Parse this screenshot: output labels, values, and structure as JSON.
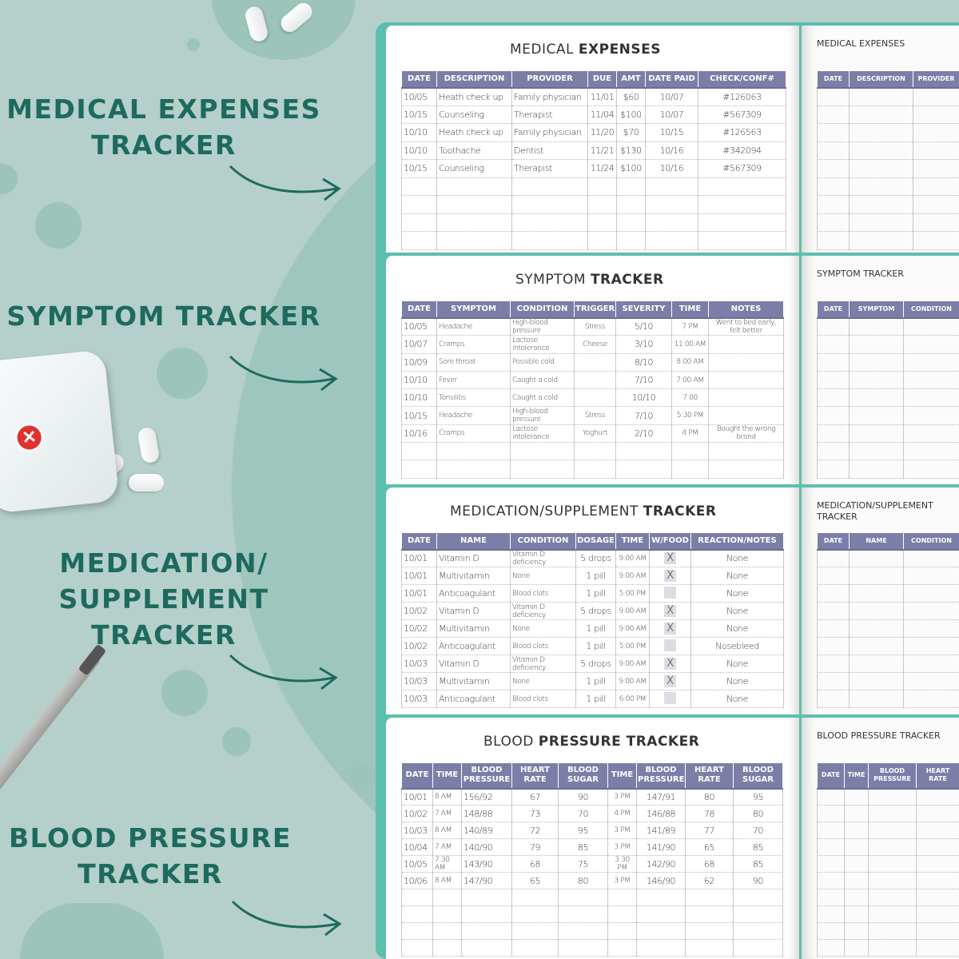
{
  "labels": {
    "medical": "MEDICAL EXPENSES\nTRACKER",
    "symptom": "SYMPTOM TRACKER",
    "medication": "MEDICATION/\nSUPPLEMENT\nTRACKER",
    "bp": "BLOOD PRESSURE\nTRACKER"
  },
  "colors": {
    "background": "#b5cfca",
    "label_text": "#1d6a5e",
    "header_fill": "#7b7fa7",
    "cover": "#5cbfae"
  },
  "icons": [
    "pill-icon",
    "pill-box-icon",
    "red-x-icon",
    "pen-icon",
    "arrow-icon"
  ],
  "pages": [
    {
      "id": "medical",
      "title_light": "MEDICAL ",
      "title_bold": "EXPENSES",
      "right_title": "MEDICAL EXPENSES",
      "right_columns": [
        "DATE",
        "DESCRIPTION",
        "PROVIDER"
      ],
      "columns": [
        "DATE",
        "DESCRIPTION",
        "PROVIDER",
        "DUE",
        "AMT",
        "DATE PAID",
        "CHECK/CONF#"
      ],
      "rows": [
        [
          "10/05",
          "Heath check up",
          "Family physician",
          "11/01",
          "$60",
          "10/07",
          "#126063"
        ],
        [
          "10/15",
          "Counseling",
          "Therapist",
          "11/04",
          "$100",
          "10/07",
          "#567309"
        ],
        [
          "10/10",
          "Heath check up",
          "Family physician",
          "11/20",
          "$70",
          "10/15",
          "#126563"
        ],
        [
          "10/10",
          "Toothache",
          "Dentist",
          "11/21",
          "$130",
          "10/16",
          "#342094"
        ],
        [
          "10/15",
          "Counseling",
          "Therapist",
          "11/24",
          "$100",
          "10/16",
          "#567309"
        ]
      ]
    },
    {
      "id": "symptom",
      "title_light": "SYMPTOM ",
      "title_bold": "TRACKER",
      "right_title": "SYMPTOM TRACKER",
      "right_columns": [
        "DATE",
        "SYMPTOM",
        "CONDITION"
      ],
      "columns": [
        "DATE",
        "SYMPTOM",
        "CONDITION",
        "TRIGGER",
        "SEVERITY",
        "TIME",
        "NOTES"
      ],
      "rows": [
        [
          "10/05",
          "Headache",
          "High-blood pressure",
          "Stress",
          "5/10",
          "7 PM",
          "Went to bed early, felt better"
        ],
        [
          "10/07",
          "Cramps",
          "Lactose intolerance",
          "Cheese",
          "3/10",
          "11:00 AM",
          ""
        ],
        [
          "10/09",
          "Sore throat",
          "Possible cold",
          "",
          "8/10",
          "8:00 AM",
          ""
        ],
        [
          "10/10",
          "Fever",
          "Caught a cold",
          "",
          "7/10",
          "7:00 AM",
          ""
        ],
        [
          "10/10",
          "Tonsilitis",
          "Caught a cold",
          "",
          "10/10",
          "7:00",
          ""
        ],
        [
          "10/15",
          "Headache",
          "High-blood pressure",
          "Stress",
          "7/10",
          "5:30 PM",
          ""
        ],
        [
          "10/16",
          "Cramps",
          "Lactose intolerance",
          "Yoghurt",
          "2/10",
          "4 PM",
          "Bought the wrong brand"
        ]
      ]
    },
    {
      "id": "medication",
      "title_light": "MEDICATION/SUPPLEMENT ",
      "title_bold": "TRACKER",
      "right_title": "MEDICATION/SUPPLEMENT TRACKER",
      "right_columns": [
        "DATE",
        "NAME",
        "CONDITION"
      ],
      "columns": [
        "DATE",
        "NAME",
        "CONDITION",
        "DOSAGE",
        "TIME",
        "W/FOOD",
        "REACTION/NOTES"
      ],
      "rows": [
        [
          "10/01",
          "Vitamin D",
          "Vitamin D deficiency",
          "5 drops",
          "9:00 AM",
          "X",
          "None"
        ],
        [
          "10/01",
          "Multivitamin",
          "None",
          "1 pill",
          "9:00 AM",
          "X",
          "None"
        ],
        [
          "10/01",
          "Anticoagulant",
          "Blood clots",
          "1 pill",
          "5:00 PM",
          "",
          "None"
        ],
        [
          "10/02",
          "Vitamin D",
          "Vitamin D deficiency",
          "5 drops",
          "9:00 AM",
          "X",
          "None"
        ],
        [
          "10/02",
          "Multivitamin",
          "None",
          "1 pill",
          "9:00 AM",
          "X",
          "None"
        ],
        [
          "10/02",
          "Anticoagulant",
          "Blood clots",
          "1 pill",
          "5:00 PM",
          "",
          "Nosebleed"
        ],
        [
          "10/03",
          "Vitamin D",
          "Vitamin D deficiency",
          "5 drops",
          "9:00 AM",
          "X",
          "None"
        ],
        [
          "10/03",
          "Multivitamin",
          "None",
          "1 pill",
          "9:00 AM",
          "X",
          "None"
        ],
        [
          "10/03",
          "Anticoagulant",
          "Blood clots",
          "1 pill",
          "6:00 PM",
          "",
          "None"
        ]
      ]
    },
    {
      "id": "bp",
      "title_light": "BLOOD ",
      "title_bold": "PRESSURE TRACKER",
      "right_title": "BLOOD PRESSURE TRACKER",
      "right_columns": [
        "DATE",
        "TIME",
        "BLOOD\nPRESSURE",
        "HEART\nRATE"
      ],
      "columns": [
        "DATE",
        "TIME",
        "BLOOD\nPRESSURE",
        "HEART\nRATE",
        "BLOOD\nSUGAR",
        "TIME",
        "BLOOD\nPRESSURE",
        "HEART\nRATE",
        "BLOOD\nSUGAR"
      ],
      "rows": [
        [
          "10/01",
          "8 AM",
          "156/92",
          "67",
          "90",
          "3 PM",
          "147/91",
          "80",
          "95"
        ],
        [
          "10/02",
          "7 AM",
          "148/88",
          "73",
          "70",
          "4 PM",
          "146/88",
          "78",
          "80"
        ],
        [
          "10/03",
          "8 AM",
          "140/89",
          "72",
          "95",
          "3 PM",
          "141/89",
          "77",
          "70"
        ],
        [
          "10/04",
          "7 AM",
          "140/90",
          "79",
          "85",
          "3 PM",
          "141/90",
          "65",
          "85"
        ],
        [
          "10/05",
          "7:30 AM",
          "143/90",
          "68",
          "75",
          "3:30 PM",
          "142/90",
          "68",
          "85"
        ],
        [
          "10/06",
          "8 AM",
          "147/90",
          "65",
          "80",
          "3 PM",
          "146/90",
          "62",
          "90"
        ]
      ]
    }
  ]
}
